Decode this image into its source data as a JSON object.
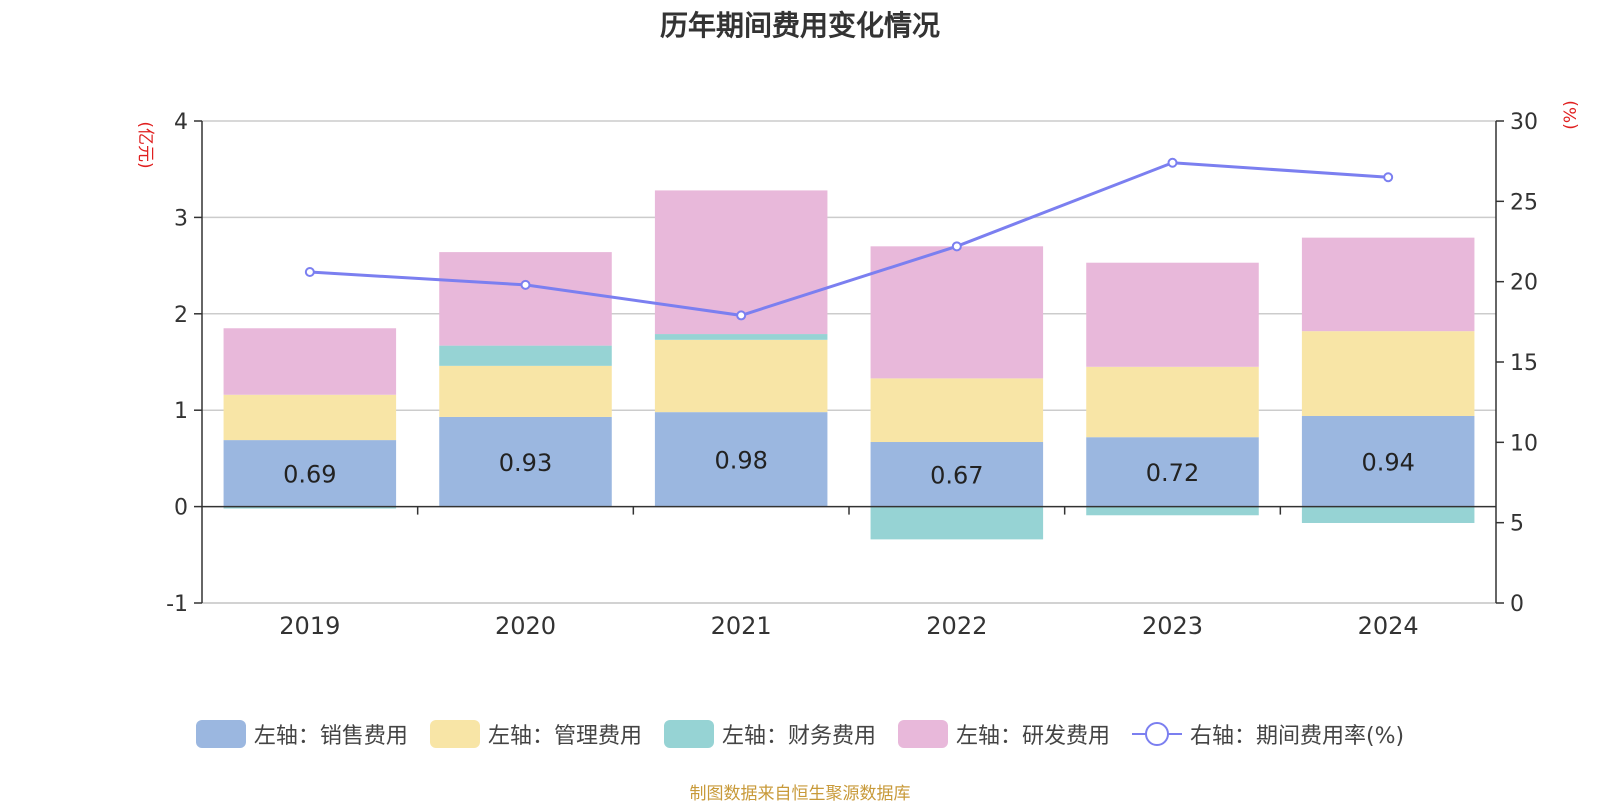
{
  "title": "历年期间费用变化情况",
  "source": "制图数据来自恒生聚源数据库",
  "chart_data": {
    "type": "bar",
    "stacked": true,
    "categories": [
      "2019",
      "2020",
      "2021",
      "2022",
      "2023",
      "2024"
    ],
    "left_axis": {
      "label": "(亿元)",
      "min": -1,
      "max": 4,
      "ticks": [
        -1,
        0,
        1,
        2,
        3,
        4
      ]
    },
    "right_axis": {
      "label": "(%)",
      "min": 0,
      "max": 30,
      "ticks": [
        0,
        5,
        10,
        15,
        20,
        25,
        30
      ]
    },
    "series": [
      {
        "name": "左轴：销售费用",
        "axis": "left",
        "color": "#9bb7e0",
        "values": [
          0.69,
          0.93,
          0.98,
          0.67,
          0.72,
          0.94
        ],
        "labels": [
          "0.69",
          "0.93",
          "0.98",
          "0.67",
          "0.72",
          "0.94"
        ]
      },
      {
        "name": "左轴：管理费用",
        "axis": "left",
        "color": "#f8e5a6",
        "values": [
          0.47,
          0.53,
          0.75,
          0.66,
          0.73,
          0.88
        ]
      },
      {
        "name": "左轴：财务费用",
        "axis": "left",
        "color": "#96d3d4",
        "values": [
          -0.02,
          0.21,
          0.06,
          -0.34,
          -0.09,
          -0.17
        ]
      },
      {
        "name": "左轴：研发费用",
        "axis": "left",
        "color": "#e8b8da",
        "values": [
          0.69,
          0.97,
          1.49,
          1.37,
          1.08,
          0.97
        ]
      },
      {
        "name": "右轴：期间费用率(%)",
        "axis": "right",
        "type": "line",
        "color": "#7b7ff0",
        "values": [
          20.6,
          19.8,
          17.9,
          22.2,
          27.4,
          26.5
        ]
      }
    ]
  }
}
